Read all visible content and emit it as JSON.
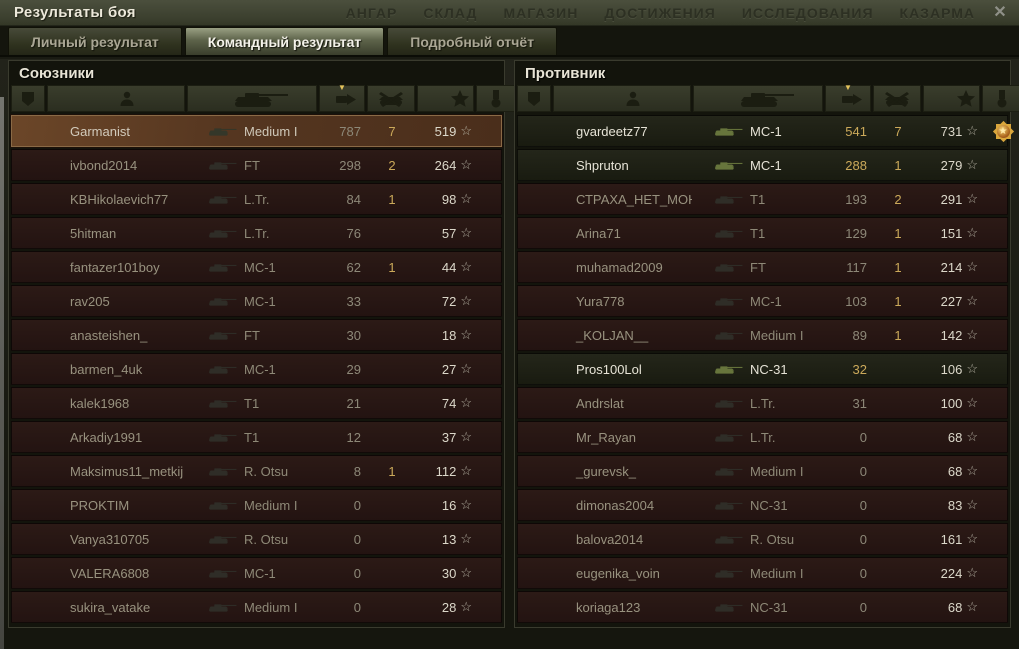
{
  "window": {
    "title": "Результаты боя"
  },
  "top_menu": {
    "items": [
      "АНГАР",
      "СКЛАД",
      "МАГАЗИН",
      "ДОСТИЖЕНИЯ",
      "ИССЛЕДОВАНИЯ",
      "КАЗАРМА"
    ]
  },
  "tabs": [
    {
      "label": "Личный результат",
      "active": false
    },
    {
      "label": "Командный результат",
      "active": true
    },
    {
      "label": "Подробный отчёт",
      "active": false
    }
  ],
  "columns": [
    "rank",
    "player",
    "vehicle",
    "damage",
    "kills",
    "experience",
    "medals"
  ],
  "sort": {
    "column": "damage",
    "direction": "desc"
  },
  "icons": {
    "close": "✕",
    "sort_arrow": "▼",
    "xp_star": "☆",
    "medal_star": "★",
    "header": {
      "rank": "rank-badge",
      "player": "person",
      "vehicle": "tank",
      "damage": "shell",
      "kills": "destroyed-tank",
      "experience": "star",
      "medals": "medal-ribbon"
    }
  },
  "colors": {
    "gold": "#cba95a",
    "self_row": "#5c3a22",
    "dead_row": "#2a1814",
    "alive_row": "#202216",
    "xp_text": "#dcd8ca",
    "grey_text": "#98927f"
  },
  "teams": {
    "allies": {
      "title": "Союзники",
      "rows": [
        {
          "name": "Garmanist",
          "vehicle": "Medium I",
          "damage": "787",
          "kills": "7",
          "xp": "519",
          "state": "self",
          "medal": false
        },
        {
          "name": "ivbond2014",
          "vehicle": "FT",
          "damage": "298",
          "kills": "2",
          "xp": "264",
          "state": "dead",
          "medal": false
        },
        {
          "name": "KBHikolaevich77",
          "vehicle": "L.Tr.",
          "damage": "84",
          "kills": "1",
          "xp": "98",
          "state": "dead",
          "medal": false
        },
        {
          "name": "5hitman",
          "vehicle": "L.Tr.",
          "damage": "76",
          "kills": "",
          "xp": "57",
          "state": "dead",
          "medal": false
        },
        {
          "name": "fantazer101boy",
          "vehicle": "MC-1",
          "damage": "62",
          "kills": "1",
          "xp": "44",
          "state": "dead",
          "medal": false
        },
        {
          "name": "rav205",
          "vehicle": "MC-1",
          "damage": "33",
          "kills": "",
          "xp": "72",
          "state": "dead",
          "medal": false
        },
        {
          "name": "anasteishen_",
          "vehicle": "FT",
          "damage": "30",
          "kills": "",
          "xp": "18",
          "state": "dead",
          "medal": false
        },
        {
          "name": "barmen_4uk",
          "vehicle": "MC-1",
          "damage": "29",
          "kills": "",
          "xp": "27",
          "state": "dead",
          "medal": false
        },
        {
          "name": "kalek1968",
          "vehicle": "T1",
          "damage": "21",
          "kills": "",
          "xp": "74",
          "state": "dead",
          "medal": false
        },
        {
          "name": "Arkadiy1991",
          "vehicle": "T1",
          "damage": "12",
          "kills": "",
          "xp": "37",
          "state": "dead",
          "medal": false
        },
        {
          "name": "Maksimus11_metkij",
          "vehicle": "R. Otsu",
          "damage": "8",
          "kills": "1",
          "xp": "112",
          "state": "dead",
          "medal": false
        },
        {
          "name": "PROKTIM",
          "vehicle": "Medium I",
          "damage": "0",
          "kills": "",
          "xp": "16",
          "state": "dead",
          "medal": false
        },
        {
          "name": "Vanya310705",
          "vehicle": "R. Otsu",
          "damage": "0",
          "kills": "",
          "xp": "13",
          "state": "dead",
          "medal": false
        },
        {
          "name": "VALERA6808",
          "vehicle": "MC-1",
          "damage": "0",
          "kills": "",
          "xp": "30",
          "state": "dead",
          "medal": false
        },
        {
          "name": "sukira_vatake",
          "vehicle": "Medium I",
          "damage": "0",
          "kills": "",
          "xp": "28",
          "state": "dead",
          "medal": false
        }
      ]
    },
    "enemies": {
      "title": "Противник",
      "rows": [
        {
          "name": "gvardeetz77",
          "vehicle": "MC-1",
          "damage": "541",
          "kills": "7",
          "xp": "731",
          "state": "alive",
          "medal": true
        },
        {
          "name": "Shpruton",
          "vehicle": "MC-1",
          "damage": "288",
          "kills": "1",
          "xp": "279",
          "state": "alive",
          "medal": false
        },
        {
          "name": "СТРАХА_НЕТ_МОНАХ",
          "vehicle": "T1",
          "damage": "193",
          "kills": "2",
          "xp": "291",
          "state": "dead",
          "medal": false
        },
        {
          "name": "Arina71",
          "vehicle": "T1",
          "damage": "129",
          "kills": "1",
          "xp": "151",
          "state": "dead",
          "medal": false
        },
        {
          "name": "muhamad2009",
          "vehicle": "FT",
          "damage": "117",
          "kills": "1",
          "xp": "214",
          "state": "dead",
          "medal": false
        },
        {
          "name": "Yura778",
          "vehicle": "MC-1",
          "damage": "103",
          "kills": "1",
          "xp": "227",
          "state": "dead",
          "medal": false
        },
        {
          "name": "_KOLJAN__",
          "vehicle": "Medium I",
          "damage": "89",
          "kills": "1",
          "xp": "142",
          "state": "dead",
          "medal": false
        },
        {
          "name": "Pros100Lol",
          "vehicle": "NC-31",
          "damage": "32",
          "kills": "",
          "xp": "106",
          "state": "alive",
          "medal": false
        },
        {
          "name": "Andrslat",
          "vehicle": "L.Tr.",
          "damage": "31",
          "kills": "",
          "xp": "100",
          "state": "dead",
          "medal": false
        },
        {
          "name": "Mr_Rayan",
          "vehicle": "L.Tr.",
          "damage": "0",
          "kills": "",
          "xp": "68",
          "state": "dead",
          "medal": false
        },
        {
          "name": "_gurevsk_",
          "vehicle": "Medium I",
          "damage": "0",
          "kills": "",
          "xp": "68",
          "state": "dead",
          "medal": false
        },
        {
          "name": "dimonas2004",
          "vehicle": "NC-31",
          "damage": "0",
          "kills": "",
          "xp": "83",
          "state": "dead",
          "medal": false
        },
        {
          "name": "balova2014",
          "vehicle": "R. Otsu",
          "damage": "0",
          "kills": "",
          "xp": "161",
          "state": "dead",
          "medal": false
        },
        {
          "name": "eugenika_voin",
          "vehicle": "Medium I",
          "damage": "0",
          "kills": "",
          "xp": "224",
          "state": "dead",
          "medal": false
        },
        {
          "name": "koriaga123",
          "vehicle": "NC-31",
          "damage": "0",
          "kills": "",
          "xp": "68",
          "state": "dead",
          "medal": false
        }
      ]
    }
  }
}
